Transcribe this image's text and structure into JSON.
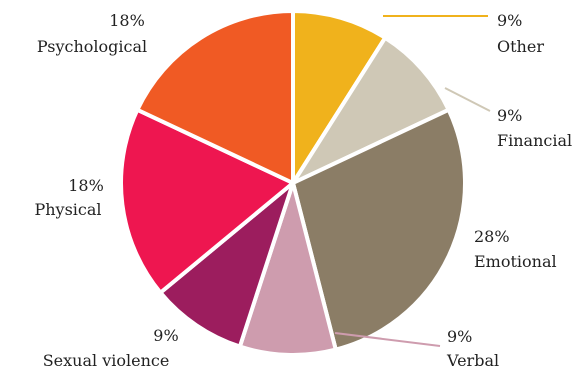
{
  "chart_data": {
    "type": "pie",
    "title": "",
    "start_angle_deg": 0,
    "direction": "clockwise",
    "slices": [
      {
        "label": "Other",
        "value": 9,
        "value_label": "9%",
        "color": "#F0B21C"
      },
      {
        "label": "Financial",
        "value": 9,
        "value_label": "9%",
        "color": "#CFC8B6"
      },
      {
        "label": "Emotional",
        "value": 28,
        "value_label": "28%",
        "color": "#8B7D66"
      },
      {
        "label": "Verbal",
        "value": 9,
        "value_label": "9%",
        "color": "#CE9CAE"
      },
      {
        "label": "Sexual violence",
        "value": 9,
        "value_label": "9%",
        "color": "#9C1D5E"
      },
      {
        "label": "Physical",
        "value": 18,
        "value_label": "18%",
        "color": "#EE1650"
      },
      {
        "label": "Psychological",
        "value": 18,
        "value_label": "18%",
        "color": "#F05A24"
      }
    ]
  }
}
